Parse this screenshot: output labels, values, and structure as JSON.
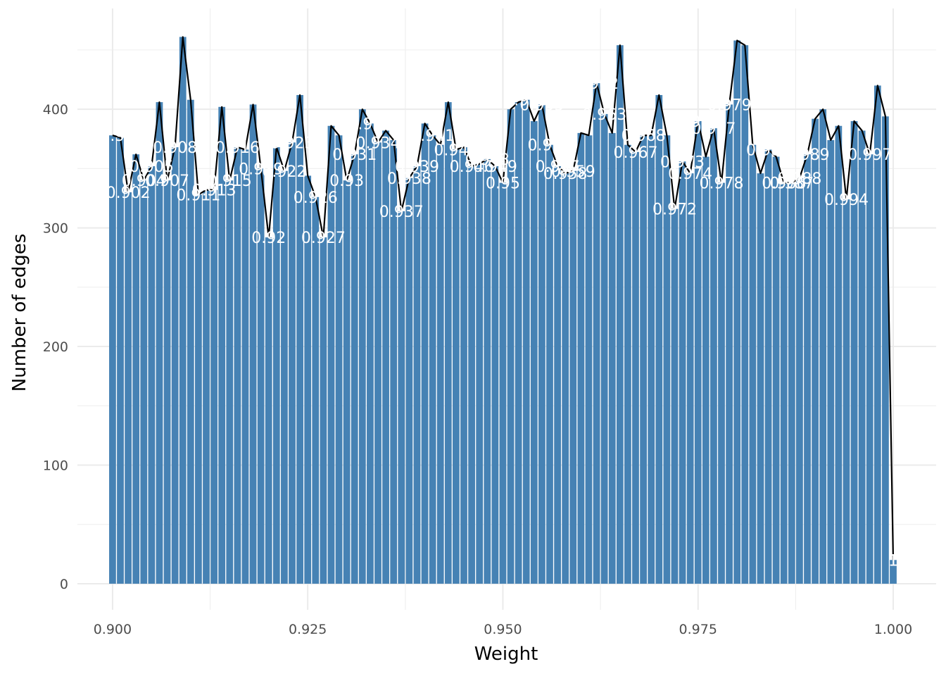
{
  "chart_data": {
    "type": "bar",
    "title": "",
    "xlabel": "Weight",
    "ylabel": "Number of edges",
    "xlim": [
      0.8955,
      1.0055
    ],
    "ylim": [
      -22,
      485
    ],
    "x_ticks": [
      0.9,
      0.925,
      0.95,
      0.975,
      1.0
    ],
    "x_tick_labels": [
      "0.900",
      "0.925",
      "0.950",
      "0.975",
      "1.000"
    ],
    "y_ticks": [
      0,
      100,
      200,
      300,
      400
    ],
    "y_tick_labels": [
      "0",
      "100",
      "200",
      "300",
      "400"
    ],
    "grid": true,
    "legend": "none",
    "bar_color": "#4682b4",
    "line_color": "#000000",
    "label_color": "#ffffff",
    "x": [
      0.9,
      0.901,
      0.902,
      0.903,
      0.904,
      0.905,
      0.906,
      0.907,
      0.908,
      0.909,
      0.91,
      0.911,
      0.912,
      0.913,
      0.914,
      0.915,
      0.916,
      0.917,
      0.918,
      0.919,
      0.92,
      0.921,
      0.922,
      0.923,
      0.924,
      0.925,
      0.926,
      0.927,
      0.928,
      0.929,
      0.93,
      0.931,
      0.932,
      0.933,
      0.934,
      0.935,
      0.936,
      0.937,
      0.938,
      0.939,
      0.94,
      0.941,
      0.942,
      0.943,
      0.944,
      0.945,
      0.946,
      0.947,
      0.948,
      0.949,
      0.95,
      0.951,
      0.952,
      0.953,
      0.954,
      0.955,
      0.956,
      0.957,
      0.958,
      0.959,
      0.96,
      0.961,
      0.962,
      0.963,
      0.964,
      0.965,
      0.966,
      0.967,
      0.968,
      0.969,
      0.97,
      0.971,
      0.972,
      0.973,
      0.974,
      0.975,
      0.976,
      0.977,
      0.978,
      0.979,
      0.98,
      0.981,
      0.982,
      0.983,
      0.984,
      0.985,
      0.986,
      0.987,
      0.988,
      0.989,
      0.99,
      0.991,
      0.992,
      0.993,
      0.994,
      0.995,
      0.996,
      0.997,
      0.998,
      0.999,
      1.0
    ],
    "values": [
      378,
      376,
      330,
      362,
      340,
      352,
      406,
      340,
      368,
      461,
      408,
      328,
      332,
      332,
      402,
      340,
      368,
      366,
      404,
      350,
      292,
      368,
      348,
      372,
      412,
      344,
      326,
      292,
      386,
      378,
      340,
      362,
      400,
      388,
      372,
      382,
      374,
      314,
      342,
      352,
      388,
      378,
      370,
      406,
      366,
      368,
      352,
      354,
      358,
      352,
      338,
      400,
      406,
      408,
      390,
      404,
      370,
      352,
      346,
      348,
      380,
      378,
      422,
      396,
      380,
      454,
      370,
      364,
      378,
      378,
      412,
      378,
      316,
      356,
      346,
      390,
      360,
      384,
      338,
      404,
      458,
      454,
      370,
      346,
      366,
      360,
      338,
      338,
      342,
      362,
      392,
      400,
      374,
      386,
      324,
      390,
      382,
      362,
      420,
      394,
      20
    ],
    "data_labels": [
      {
        "x": 0.9,
        "y": 378,
        "text": "0.9"
      },
      {
        "x": 0.902,
        "y": 330,
        "text": "0.902"
      },
      {
        "x": 0.904,
        "y": 340,
        "text": "0.904"
      },
      {
        "x": 0.905,
        "y": 352,
        "text": "0.905"
      },
      {
        "x": 0.907,
        "y": 340,
        "text": "0.907"
      },
      {
        "x": 0.908,
        "y": 368,
        "text": "0.908"
      },
      {
        "x": 0.911,
        "y": 328,
        "text": "0.911"
      },
      {
        "x": 0.913,
        "y": 332,
        "text": "0.913"
      },
      {
        "x": 0.915,
        "y": 340,
        "text": "0.915"
      },
      {
        "x": 0.916,
        "y": 368,
        "text": "0.916"
      },
      {
        "x": 0.919,
        "y": 350,
        "text": "0.919"
      },
      {
        "x": 0.92,
        "y": 292,
        "text": "0.92"
      },
      {
        "x": 0.922,
        "y": 348,
        "text": "0.922"
      },
      {
        "x": 0.923,
        "y": 372,
        "text": "0.923"
      },
      {
        "x": 0.926,
        "y": 326,
        "text": "0.926"
      },
      {
        "x": 0.927,
        "y": 292,
        "text": "0.927"
      },
      {
        "x": 0.93,
        "y": 340,
        "text": "0.93"
      },
      {
        "x": 0.931,
        "y": 362,
        "text": "0.931"
      },
      {
        "x": 0.933,
        "y": 388,
        "text": "0.933"
      },
      {
        "x": 0.934,
        "y": 372,
        "text": "0.934"
      },
      {
        "x": 0.937,
        "y": 314,
        "text": "0.937"
      },
      {
        "x": 0.938,
        "y": 342,
        "text": "0.938"
      },
      {
        "x": 0.939,
        "y": 352,
        "text": "0.939"
      },
      {
        "x": 0.941,
        "y": 378,
        "text": "0.941"
      },
      {
        "x": 0.944,
        "y": 366,
        "text": "0.944"
      },
      {
        "x": 0.946,
        "y": 352,
        "text": "0.946"
      },
      {
        "x": 0.948,
        "y": 358,
        "text": "0.948"
      },
      {
        "x": 0.949,
        "y": 352,
        "text": "0.949"
      },
      {
        "x": 0.95,
        "y": 338,
        "text": "0.95"
      },
      {
        "x": 0.953,
        "y": 408,
        "text": "0.953"
      },
      {
        "x": 0.955,
        "y": 404,
        "text": "0.955"
      },
      {
        "x": 0.956,
        "y": 370,
        "text": "0.956"
      },
      {
        "x": 0.957,
        "y": 352,
        "text": "0.957"
      },
      {
        "x": 0.958,
        "y": 346,
        "text": "0.958"
      },
      {
        "x": 0.959,
        "y": 348,
        "text": "0.959"
      },
      {
        "x": 0.962,
        "y": 422,
        "text": "0.962"
      },
      {
        "x": 0.963,
        "y": 396,
        "text": "0.963"
      },
      {
        "x": 0.967,
        "y": 364,
        "text": "0.967"
      },
      {
        "x": 0.968,
        "y": 378,
        "text": "0.968"
      },
      {
        "x": 0.972,
        "y": 316,
        "text": "0.972"
      },
      {
        "x": 0.973,
        "y": 356,
        "text": "0.973"
      },
      {
        "x": 0.974,
        "y": 346,
        "text": "0.974"
      },
      {
        "x": 0.975,
        "y": 390,
        "text": "0.975"
      },
      {
        "x": 0.977,
        "y": 384,
        "text": "0.977"
      },
      {
        "x": 0.978,
        "y": 338,
        "text": "0.978"
      },
      {
        "x": 0.979,
        "y": 404,
        "text": "0.979"
      },
      {
        "x": 0.984,
        "y": 366,
        "text": "0.984"
      },
      {
        "x": 0.986,
        "y": 338,
        "text": "0.986"
      },
      {
        "x": 0.987,
        "y": 338,
        "text": "0.987"
      },
      {
        "x": 0.988,
        "y": 342,
        "text": "0.988"
      },
      {
        "x": 0.989,
        "y": 362,
        "text": "0.989"
      },
      {
        "x": 0.994,
        "y": 324,
        "text": "0.994"
      },
      {
        "x": 0.997,
        "y": 362,
        "text": "0.997"
      },
      {
        "x": 1.0,
        "y": 20,
        "text": "1"
      }
    ]
  }
}
